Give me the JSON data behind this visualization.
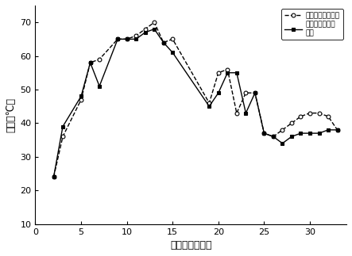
{
  "dashed_x": [
    2,
    3,
    5,
    6,
    7,
    9,
    10,
    11,
    12,
    13,
    14,
    15,
    19,
    20,
    21,
    22,
    23,
    24,
    25,
    26,
    27,
    28,
    29,
    30,
    31,
    32,
    33
  ],
  "dashed_y": [
    24,
    36,
    47,
    58,
    59,
    65,
    65,
    66,
    68,
    70,
    64,
    65,
    46,
    55,
    56,
    43,
    49,
    49,
    37,
    36,
    38,
    40,
    42,
    43,
    43,
    42,
    38
  ],
  "solid_x": [
    2,
    3,
    5,
    6,
    7,
    9,
    10,
    11,
    12,
    13,
    14,
    15,
    19,
    20,
    21,
    22,
    23,
    24,
    25,
    26,
    27,
    28,
    29,
    30,
    31,
    32,
    33
  ],
  "solid_y": [
    24,
    39,
    48,
    58,
    51,
    65,
    65,
    65,
    67,
    68,
    64,
    61,
    45,
    49,
    55,
    55,
    43,
    49,
    37,
    36,
    34,
    36,
    37,
    37,
    37,
    38,
    38
  ],
  "xlabel": "堆肟时间（天）",
  "ylabel": "温度（℃）",
  "legend_dashed": "不添加生物炭处理",
  "legend_solid": "添加生物炭处理\n素凝",
  "xlim": [
    0,
    34
  ],
  "ylim": [
    10,
    75
  ],
  "xticks": [
    0,
    5,
    10,
    15,
    20,
    25,
    30
  ],
  "yticks": [
    10,
    20,
    30,
    40,
    50,
    60,
    70
  ],
  "fig_width": 4.43,
  "fig_height": 3.23,
  "dpi": 100
}
